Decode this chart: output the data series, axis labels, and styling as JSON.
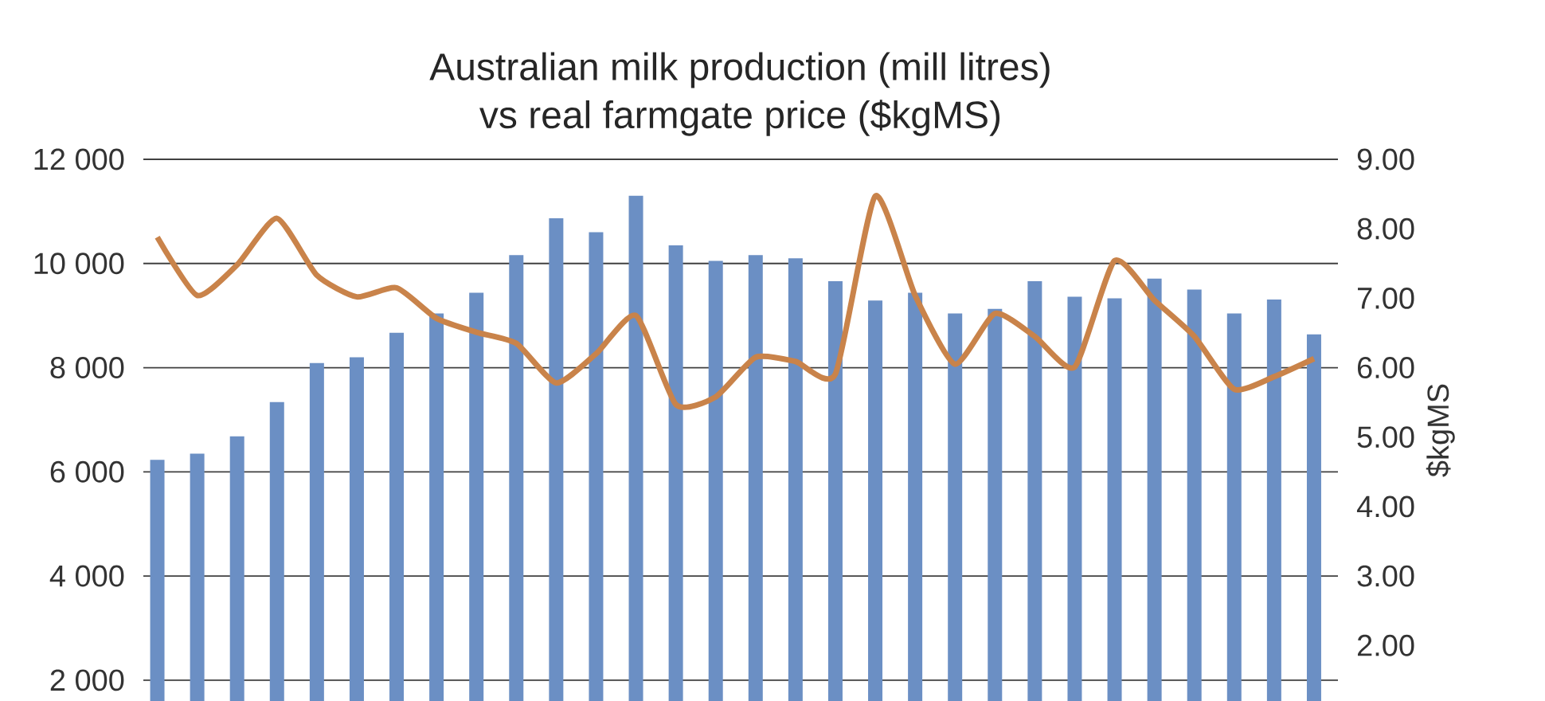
{
  "chart_data": {
    "type": "bar",
    "title": "Australian milk production (mill litres)",
    "subtitle": "vs real farmgate price ($kgMS)",
    "y2label": "$kgMS",
    "categories": [
      null,
      null,
      null,
      null,
      null,
      null,
      null,
      null,
      null,
      null,
      null,
      null,
      null,
      null,
      null,
      null,
      null,
      null,
      null,
      null,
      null,
      null,
      null,
      null,
      null,
      null,
      null,
      null,
      null,
      null
    ],
    "series": [
      {
        "color": "#6b8fc4",
        "values": [
          6230,
          6350,
          6680,
          7340,
          8090,
          8200,
          8670,
          9040,
          9440,
          10160,
          10870,
          10600,
          11300,
          10350,
          10050,
          10160,
          10100,
          9660,
          9290,
          9440,
          9040,
          9130,
          9660,
          9360,
          9330,
          9710,
          9500,
          9040,
          9310,
          8640
        ]
      },
      {
        "type": "line",
        "axis": "y2",
        "color": "#c9834a",
        "values": [
          7.88,
          7.04,
          7.48,
          8.15,
          7.33,
          7.02,
          7.15,
          6.71,
          6.51,
          6.35,
          5.78,
          6.2,
          6.75,
          5.47,
          5.58,
          6.15,
          6.09,
          5.91,
          8.47,
          7.04,
          6.05,
          6.78,
          6.45,
          6.01,
          7.54,
          6.97,
          6.45,
          5.69,
          5.87,
          6.13
        ]
      }
    ],
    "ylim": [
      1600,
      12000
    ],
    "yticks": [
      {
        "value": 2000,
        "label": "2 000"
      },
      {
        "value": 4000,
        "label": "4 000"
      },
      {
        "value": 6000,
        "label": "6 000"
      },
      {
        "value": 8000,
        "label": "8 000"
      },
      {
        "value": 10000,
        "label": "10 000"
      },
      {
        "value": 12000,
        "label": "12 000"
      }
    ],
    "y2lim": [
      1.2,
      9.0
    ],
    "y2ticks": [
      {
        "value": 2,
        "label": "2.00"
      },
      {
        "value": 3,
        "label": "3.00"
      },
      {
        "value": 4,
        "label": "4.00"
      },
      {
        "value": 5,
        "label": "5.00"
      },
      {
        "value": 6,
        "label": "6.00"
      },
      {
        "value": 7,
        "label": "7.00"
      },
      {
        "value": 8,
        "label": "8.00"
      },
      {
        "value": 9,
        "label": "9.00"
      }
    ],
    "grid": "y"
  }
}
